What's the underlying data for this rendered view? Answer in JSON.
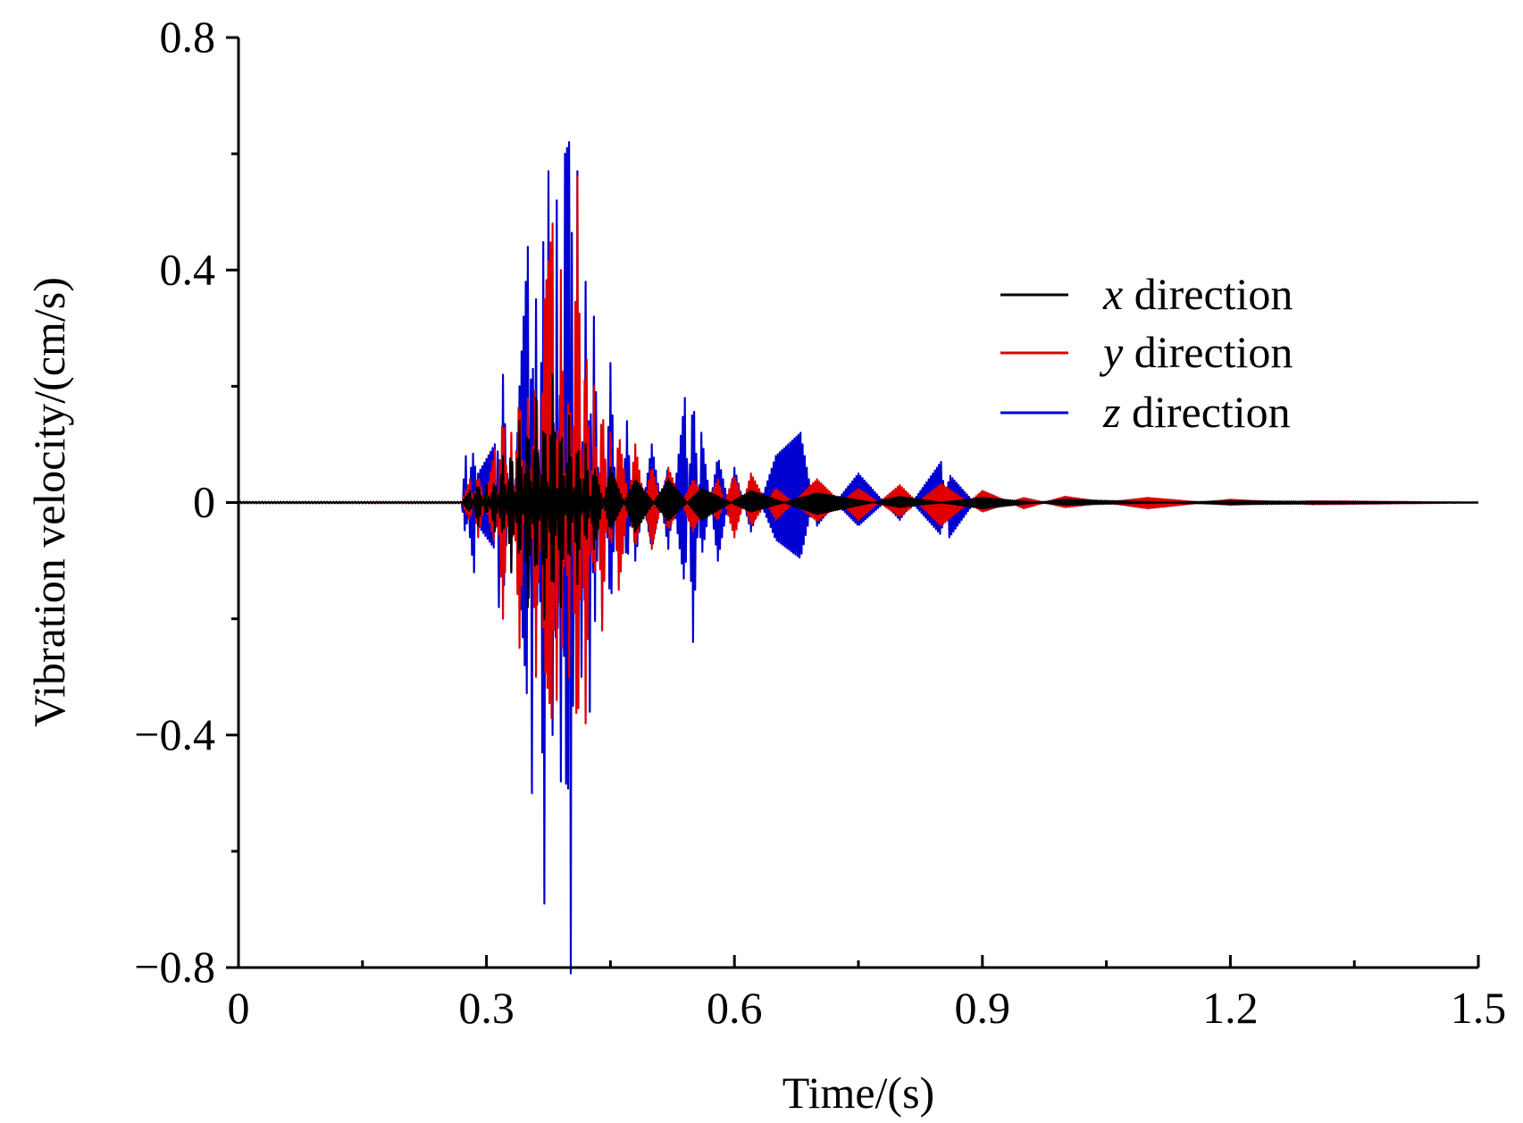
{
  "chart_data": {
    "type": "line",
    "xlabel": "Time/(s)",
    "ylabel": "Vibration velocity/(cm/s)",
    "xlim": [
      0,
      1.5
    ],
    "ylim": [
      -0.8,
      0.8
    ],
    "x_ticks": [
      "0",
      "0.3",
      "0.6",
      "0.9",
      "1.2",
      "1.5"
    ],
    "x_tick_values": [
      0,
      0.3,
      0.6,
      0.9,
      1.2,
      1.5
    ],
    "y_ticks": [
      "−0.8",
      "−0.4",
      "0",
      "0.4",
      "0.8"
    ],
    "y_tick_values": [
      -0.8,
      -0.4,
      0,
      0.4,
      0.8
    ],
    "grid": false,
    "legend_position": "upper-right",
    "series": [
      {
        "var": "x",
        "name_suffix": " direction",
        "color": "#000000",
        "points": [
          [
            0,
            0
          ],
          [
            0.27,
            0
          ],
          [
            0.28,
            0.02
          ],
          [
            0.29,
            -0.04
          ],
          [
            0.3,
            0.03
          ],
          [
            0.31,
            -0.05
          ],
          [
            0.32,
            0.08
          ],
          [
            0.33,
            -0.12
          ],
          [
            0.34,
            0.14
          ],
          [
            0.35,
            -0.18
          ],
          [
            0.36,
            0.18
          ],
          [
            0.37,
            -0.2
          ],
          [
            0.38,
            0.22
          ],
          [
            0.39,
            -0.18
          ],
          [
            0.4,
            0.15
          ],
          [
            0.41,
            -0.14
          ],
          [
            0.42,
            0.1
          ],
          [
            0.43,
            -0.08
          ],
          [
            0.45,
            0.06
          ],
          [
            0.48,
            -0.05
          ],
          [
            0.52,
            0.04
          ],
          [
            0.56,
            -0.03
          ],
          [
            0.62,
            0.02
          ],
          [
            0.7,
            -0.02
          ],
          [
            0.8,
            0.01
          ],
          [
            0.9,
            -0.01
          ],
          [
            1.0,
            0.005
          ],
          [
            1.2,
            -0.003
          ],
          [
            1.5,
            0
          ]
        ]
      },
      {
        "var": "y",
        "name_suffix": " direction",
        "color": "#e00000",
        "points": [
          [
            0,
            0
          ],
          [
            0.27,
            0
          ],
          [
            0.28,
            0.04
          ],
          [
            0.29,
            -0.06
          ],
          [
            0.31,
            0.09
          ],
          [
            0.32,
            -0.2
          ],
          [
            0.33,
            0.12
          ],
          [
            0.34,
            -0.25
          ],
          [
            0.35,
            0.18
          ],
          [
            0.36,
            -0.3
          ],
          [
            0.37,
            0.35
          ],
          [
            0.38,
            0.48
          ],
          [
            0.385,
            -0.34
          ],
          [
            0.39,
            0.4
          ],
          [
            0.4,
            -0.3
          ],
          [
            0.41,
            0.56
          ],
          [
            0.42,
            -0.38
          ],
          [
            0.43,
            0.2
          ],
          [
            0.44,
            -0.22
          ],
          [
            0.45,
            0.12
          ],
          [
            0.46,
            -0.15
          ],
          [
            0.48,
            0.1
          ],
          [
            0.5,
            -0.08
          ],
          [
            0.52,
            0.06
          ],
          [
            0.55,
            -0.05
          ],
          [
            0.58,
            0.04
          ],
          [
            0.6,
            -0.06
          ],
          [
            0.62,
            0.05
          ],
          [
            0.65,
            -0.03
          ],
          [
            0.7,
            0.04
          ],
          [
            0.75,
            -0.03
          ],
          [
            0.8,
            0.03
          ],
          [
            0.85,
            -0.04
          ],
          [
            0.9,
            0.02
          ],
          [
            0.95,
            -0.01
          ],
          [
            1.0,
            0.01
          ],
          [
            1.1,
            -0.01
          ],
          [
            1.2,
            0.005
          ],
          [
            1.3,
            -0.003
          ],
          [
            1.5,
            0
          ]
        ]
      },
      {
        "var": "z",
        "name_suffix": " direction",
        "color": "#0000d0",
        "points": [
          [
            0,
            0
          ],
          [
            0.27,
            0
          ],
          [
            0.275,
            0.08
          ],
          [
            0.28,
            -0.06
          ],
          [
            0.285,
            -0.12
          ],
          [
            0.29,
            0.05
          ],
          [
            0.31,
            0.1
          ],
          [
            0.315,
            -0.18
          ],
          [
            0.32,
            0.22
          ],
          [
            0.33,
            -0.12
          ],
          [
            0.34,
            0.2
          ],
          [
            0.35,
            0.44
          ],
          [
            0.355,
            -0.5
          ],
          [
            0.36,
            0.35
          ],
          [
            0.37,
            -0.69
          ],
          [
            0.375,
            0.57
          ],
          [
            0.38,
            -0.4
          ],
          [
            0.385,
            0.52
          ],
          [
            0.39,
            -0.48
          ],
          [
            0.395,
            0.6
          ],
          [
            0.4,
            0.62
          ],
          [
            0.402,
            -0.81
          ],
          [
            0.41,
            0.57
          ],
          [
            0.415,
            -0.3
          ],
          [
            0.42,
            0.38
          ],
          [
            0.425,
            -0.36
          ],
          [
            0.43,
            0.32
          ],
          [
            0.44,
            -0.2
          ],
          [
            0.45,
            0.24
          ],
          [
            0.46,
            -0.12
          ],
          [
            0.47,
            0.14
          ],
          [
            0.48,
            -0.1
          ],
          [
            0.5,
            0.1
          ],
          [
            0.52,
            -0.08
          ],
          [
            0.54,
            0.18
          ],
          [
            0.55,
            -0.24
          ],
          [
            0.56,
            0.12
          ],
          [
            0.58,
            -0.1
          ],
          [
            0.6,
            0.06
          ],
          [
            0.62,
            -0.05
          ],
          [
            0.65,
            0.08
          ],
          [
            0.68,
            0.12
          ],
          [
            0.7,
            -0.04
          ],
          [
            0.75,
            0.05
          ],
          [
            0.8,
            -0.03
          ],
          [
            0.85,
            0.07
          ],
          [
            0.86,
            -0.06
          ],
          [
            0.9,
            0.02
          ],
          [
            0.95,
            -0.01
          ],
          [
            1.0,
            0.01
          ],
          [
            1.1,
            -0.01
          ],
          [
            1.2,
            0.005
          ],
          [
            1.3,
            -0.003
          ],
          [
            1.5,
            0
          ]
        ]
      }
    ]
  }
}
